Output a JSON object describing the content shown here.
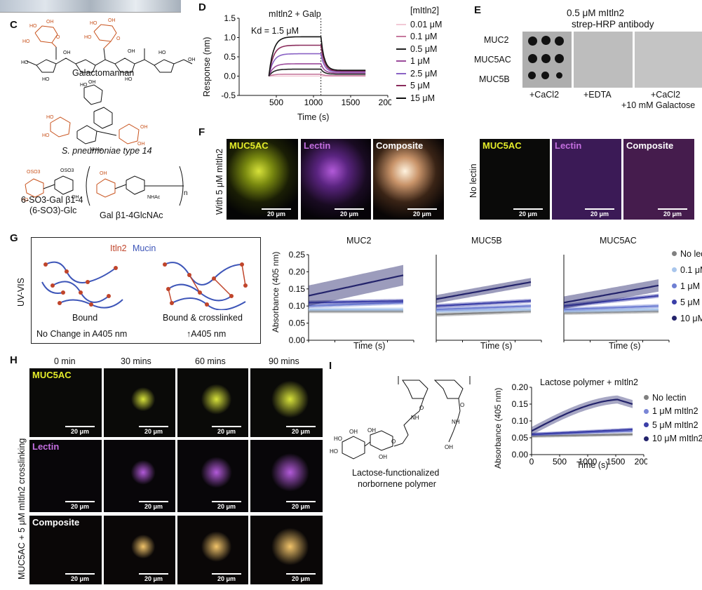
{
  "top_strip": {},
  "panels": {
    "C": {
      "letter": "C",
      "galactomannan": "Galactomannan",
      "pneumoniae": "S. pneumoniae type 14",
      "sulfated_1": "6-SO3-Gal β1-4",
      "sulfated_2": "(6-SO3)-Glc",
      "lacnac": "Gal β1-4GlcNAc",
      "nhac": "NHAc",
      "repeat_n": "n"
    },
    "D": {
      "letter": "D",
      "title": "mItln2 + Galp",
      "kd": "Kd = 1.5 μM",
      "legend_title": "[mItln2]",
      "legend": [
        "0.01 μM",
        "0.1 μM",
        "0.5 μM",
        "1 μM",
        "2.5 μM",
        "5 μM",
        "15 μM"
      ],
      "legend_colors": [
        "#f2c9d6",
        "#c77a9e",
        "#222222",
        "#9b4b9b",
        "#8a63c5",
        "#8a2c5c",
        "#111111"
      ],
      "ylabel": "Response (nm)",
      "xlabel": "Time (s)"
    },
    "E": {
      "letter": "E",
      "title_1": "0.5 μM mItln2",
      "title_2": "strep-HRP antibody",
      "rows": [
        "MUC2",
        "MUC5AC",
        "MUC5B"
      ],
      "cols": [
        "+CaCl2",
        "+EDTA",
        "+CaCl2"
      ],
      "col3_line2": "+10 mM Galactose"
    },
    "F": {
      "letter": "F",
      "left_label": "With 5 μM mItln2",
      "right_label": "No lectin",
      "tiles": [
        "MUC5AC",
        "Lectin",
        "Composite"
      ],
      "scalebar": "20 μm"
    },
    "G": {
      "letter": "G",
      "legend_top_1": "Itln2",
      "legend_top_2": "Mucin",
      "side_label": "UV-VIS",
      "bound": "Bound",
      "bound_crosslinked": "Bound & crosslinked",
      "no_change": "No Change in A405 nm",
      "increase": "↑A405 nm",
      "ylabel": "Absorbance (405 nm)",
      "xlabel": "Time (s)",
      "subplots": [
        "MUC2",
        "MUC5B",
        "MUC5AC"
      ],
      "legend": [
        "No lectin",
        "0.1 μM",
        "1 μM",
        "5 μM",
        "10 μM"
      ],
      "legend_colors": [
        "#808080",
        "#a9c6ec",
        "#6f7fd3",
        "#3b3fa8",
        "#23236b"
      ]
    },
    "H": {
      "letter": "H",
      "cols": [
        "0 min",
        "30 mins",
        "60 mins",
        "90 mins"
      ],
      "rows": [
        "MUC5AC",
        "Lectin",
        "Composite"
      ],
      "side_label": "MUC5AC + 5 μM mItln2 crosslinking",
      "scalebar": "20 μm"
    },
    "I": {
      "letter": "I",
      "polymer_1": "Lactose-functionalized",
      "polymer_2": "norbornene polymer",
      "title": "Lactose polymer + mItln2",
      "ylabel": "Absorbance (405 nm)",
      "xlabel": "Time (s)",
      "legend": [
        "No lectin",
        "1 μM mItln2",
        "5 μM mItln2",
        "10 μM mItln2"
      ],
      "legend_colors": [
        "#808080",
        "#7a86d6",
        "#3b3fa8",
        "#23236b"
      ]
    }
  },
  "chart_data": [
    {
      "id": "D",
      "type": "line",
      "title": "mItln2 + Galp",
      "xlabel": "Time (s)",
      "ylabel": "Response (nm)",
      "xlim": [
        0,
        2000
      ],
      "ylim": [
        -0.5,
        1.5
      ],
      "xticks": [
        500,
        1000,
        1500,
        2000
      ],
      "yticks": [
        -0.5,
        0.0,
        0.5,
        1.0,
        1.5
      ],
      "assoc_start": 400,
      "dissoc_start": 1100,
      "end": 1700,
      "series": [
        {
          "name": "0.01 μM",
          "plateau": 0.0,
          "end": 0.0
        },
        {
          "name": "0.1 μM",
          "plateau": 0.05,
          "end": 0.01
        },
        {
          "name": "0.5 μM",
          "plateau": 0.18,
          "end": 0.05
        },
        {
          "name": "1 μM",
          "plateau": 0.32,
          "end": 0.08
        },
        {
          "name": "2.5 μM",
          "plateau": 0.58,
          "end": 0.11
        },
        {
          "name": "5 μM",
          "plateau": 0.8,
          "end": 0.13
        },
        {
          "name": "15 μM",
          "plateau": 1.02,
          "end": 0.15
        }
      ]
    },
    {
      "id": "G-MUC2",
      "type": "line",
      "title": "MUC2",
      "xlim": [
        0,
        2000
      ],
      "ylim": [
        0.0,
        0.25
      ],
      "xticks": [
        0,
        500,
        1000,
        1500,
        2000
      ],
      "yticks": [
        0.0,
        0.05,
        0.1,
        0.15,
        0.2,
        0.25
      ],
      "series": [
        {
          "name": "No lectin",
          "start": 0.085,
          "end": 0.085
        },
        {
          "name": "0.1 μM",
          "start": 0.09,
          "end": 0.09
        },
        {
          "name": "1 μM",
          "start": 0.1,
          "end": 0.11
        },
        {
          "name": "5 μM",
          "start": 0.11,
          "end": 0.115
        },
        {
          "name": "10 μM",
          "start": 0.13,
          "end": 0.19
        }
      ]
    },
    {
      "id": "G-MUC5B",
      "type": "line",
      "title": "MUC5B",
      "xlim": [
        0,
        2000
      ],
      "ylim": [
        0.0,
        0.25
      ],
      "xticks": [
        0,
        500,
        1000,
        1500,
        2000
      ],
      "series": [
        {
          "name": "No lectin",
          "start": 0.075,
          "end": 0.085
        },
        {
          "name": "0.1 μM",
          "start": 0.085,
          "end": 0.09
        },
        {
          "name": "1 μM",
          "start": 0.09,
          "end": 0.1
        },
        {
          "name": "5 μM",
          "start": 0.1,
          "end": 0.115
        },
        {
          "name": "10 μM",
          "start": 0.12,
          "end": 0.17
        }
      ]
    },
    {
      "id": "G-MUC5AC",
      "type": "line",
      "title": "MUC5AC",
      "xlim": [
        0,
        2000
      ],
      "ylim": [
        0.0,
        0.25
      ],
      "xticks": [
        0,
        500,
        1000,
        1500,
        2000
      ],
      "series": [
        {
          "name": "No lectin",
          "start": 0.08,
          "end": 0.085
        },
        {
          "name": "0.1 μM",
          "start": 0.085,
          "end": 0.09
        },
        {
          "name": "1 μM",
          "start": 0.09,
          "end": 0.1
        },
        {
          "name": "5 μM",
          "start": 0.1,
          "end": 0.13
        },
        {
          "name": "10 μM",
          "start": 0.11,
          "end": 0.16
        }
      ]
    },
    {
      "id": "I",
      "type": "line",
      "title": "Lactose polymer + mItln2",
      "xlabel": "Time (s)",
      "ylabel": "Absorbance (405 nm)",
      "xlim": [
        0,
        2000
      ],
      "ylim": [
        0.0,
        0.2
      ],
      "xticks": [
        0,
        500,
        1000,
        1500,
        2000
      ],
      "yticks": [
        0.0,
        0.05,
        0.1,
        0.15,
        0.2
      ],
      "series": [
        {
          "name": "No lectin",
          "start": 0.055,
          "end": 0.06
        },
        {
          "name": "1 μM mItln2",
          "start": 0.06,
          "end": 0.07
        },
        {
          "name": "5 μM mItln2",
          "start": 0.06,
          "end": 0.075
        },
        {
          "name": "10 μM mItln2",
          "start": 0.07,
          "end": 0.15,
          "peak": 0.165
        }
      ]
    }
  ]
}
